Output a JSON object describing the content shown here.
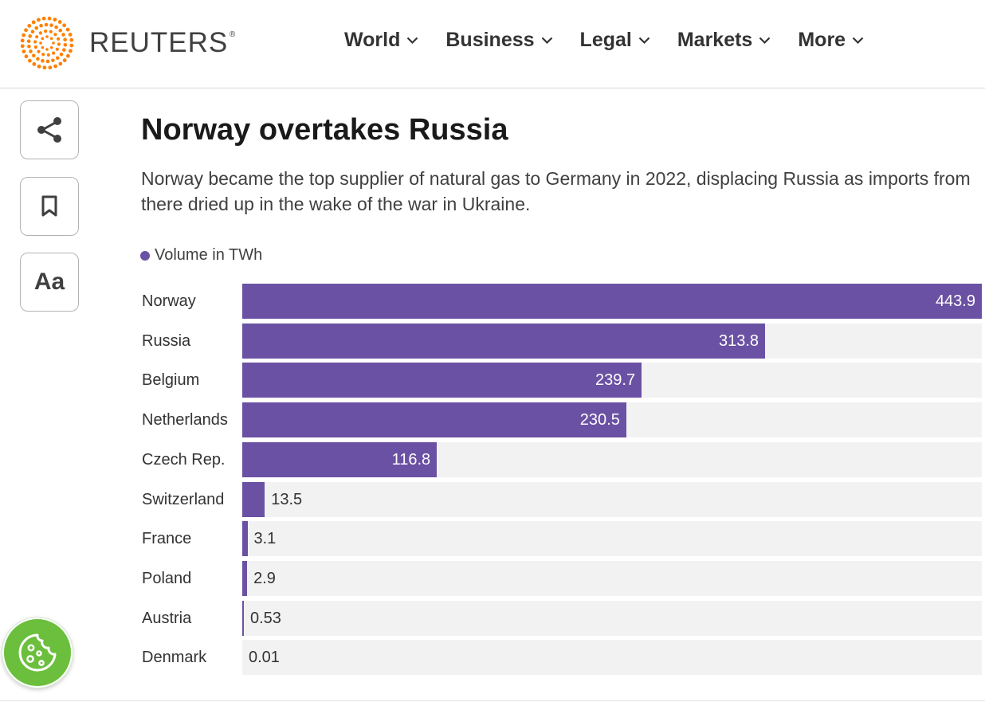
{
  "brand": {
    "name": "REUTERS",
    "registered": "®",
    "accent": "#ff8000"
  },
  "nav": [
    {
      "label": "World"
    },
    {
      "label": "Business"
    },
    {
      "label": "Legal"
    },
    {
      "label": "Markets"
    },
    {
      "label": "More"
    }
  ],
  "tools": {
    "font_label": "Aa"
  },
  "colors": {
    "bar": "#6a51a3",
    "track": "#f2f2f2",
    "cookie": "#6bbf3d"
  },
  "chart_data": {
    "type": "bar",
    "orientation": "horizontal",
    "title": "Norway overtakes Russia",
    "subtitle": "Norway became the top supplier of natural gas to Germany in 2022, displacing Russia as imports from there dried up in the wake of the war in Ukraine.",
    "legend": "Volume in TWh",
    "categories": [
      "Norway",
      "Russia",
      "Belgium",
      "Netherlands",
      "Czech Rep.",
      "Switzerland",
      "France",
      "Poland",
      "Austria",
      "Denmark"
    ],
    "values": [
      443.9,
      313.8,
      239.7,
      230.5,
      116.8,
      13.5,
      3.1,
      2.9,
      0.53,
      0.01
    ],
    "labels": [
      "443.9",
      "313.8",
      "239.7",
      "230.5",
      "116.8",
      "13.5",
      "3.1",
      "2.9",
      "0.53",
      "0.01"
    ],
    "xlim": [
      0,
      443.9
    ]
  }
}
